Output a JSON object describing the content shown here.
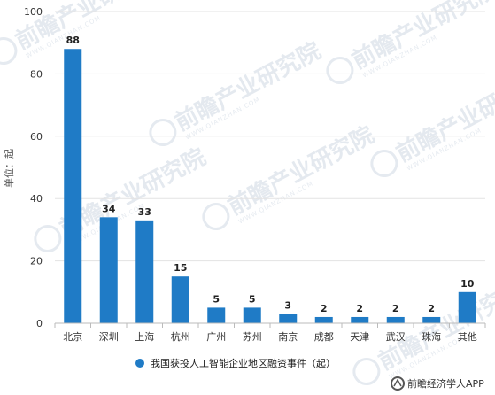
{
  "chart_data": {
    "type": "bar",
    "title": "",
    "xlabel": "",
    "ylabel": "单位：起",
    "ylim": [
      0,
      100
    ],
    "yticks": [
      0,
      20,
      40,
      60,
      80,
      100
    ],
    "grid": true,
    "legend_position": "bottom",
    "bar_color": "#1f7bc6",
    "categories": [
      "北京",
      "深圳",
      "上海",
      "杭州",
      "广州",
      "苏州",
      "南京",
      "成都",
      "天津",
      "武汉",
      "珠海",
      "其他"
    ],
    "series": [
      {
        "name": "我国获投人工智能企业地区融资事件（起）",
        "values": [
          88,
          34,
          33,
          15,
          5,
          5,
          3,
          2,
          2,
          2,
          2,
          10
        ]
      }
    ]
  },
  "watermark": {
    "text": "前瞻产业研究院",
    "subtext": "WWW.QIANZHAN.COM"
  },
  "footer": {
    "text": "前瞻经济学人APP"
  }
}
